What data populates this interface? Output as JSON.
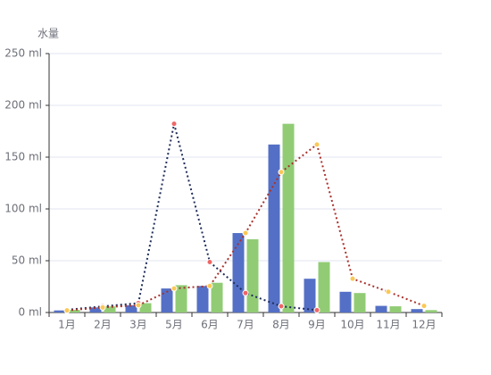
{
  "chart_data": {
    "type": "bar-line",
    "y_axis_name": "水量",
    "categories": [
      "1月",
      "2月",
      "3月",
      "5月",
      "6月",
      "7月",
      "8月",
      "9月",
      "10月",
      "11月",
      "12月"
    ],
    "ylim": [
      0,
      250
    ],
    "yticks": [
      {
        "value": 0,
        "label": "0 ml"
      },
      {
        "value": 50,
        "label": "50 ml"
      },
      {
        "value": 100,
        "label": "100 ml"
      },
      {
        "value": 150,
        "label": "150 ml"
      },
      {
        "value": 200,
        "label": "200 ml"
      },
      {
        "value": 250,
        "label": "250 ml"
      }
    ],
    "grid": true,
    "series": [
      {
        "type": "bar",
        "color": "#5470c6",
        "values": [
          2.0,
          4.9,
          7.0,
          23.2,
          25.6,
          76.7,
          162.2,
          32.6,
          20.0,
          6.4,
          3.3
        ]
      },
      {
        "type": "bar",
        "color": "#91cc75",
        "values": [
          2.6,
          5.9,
          9.0,
          26.4,
          28.7,
          70.7,
          182.2,
          48.7,
          18.8,
          6.0,
          2.3
        ]
      },
      {
        "type": "line",
        "color": "#1f2d5a",
        "marker_color": "#ee6666",
        "values": [
          2.6,
          5.9,
          9.0,
          182.2,
          48.7,
          18.8,
          6.0,
          2.3,
          null,
          null,
          null
        ]
      },
      {
        "type": "line",
        "color": "#a8322d",
        "marker_color": "#fac858",
        "values": [
          2.0,
          4.9,
          7.0,
          23.2,
          25.6,
          76.7,
          135.6,
          162.2,
          32.6,
          20.0,
          6.4
        ]
      }
    ]
  }
}
